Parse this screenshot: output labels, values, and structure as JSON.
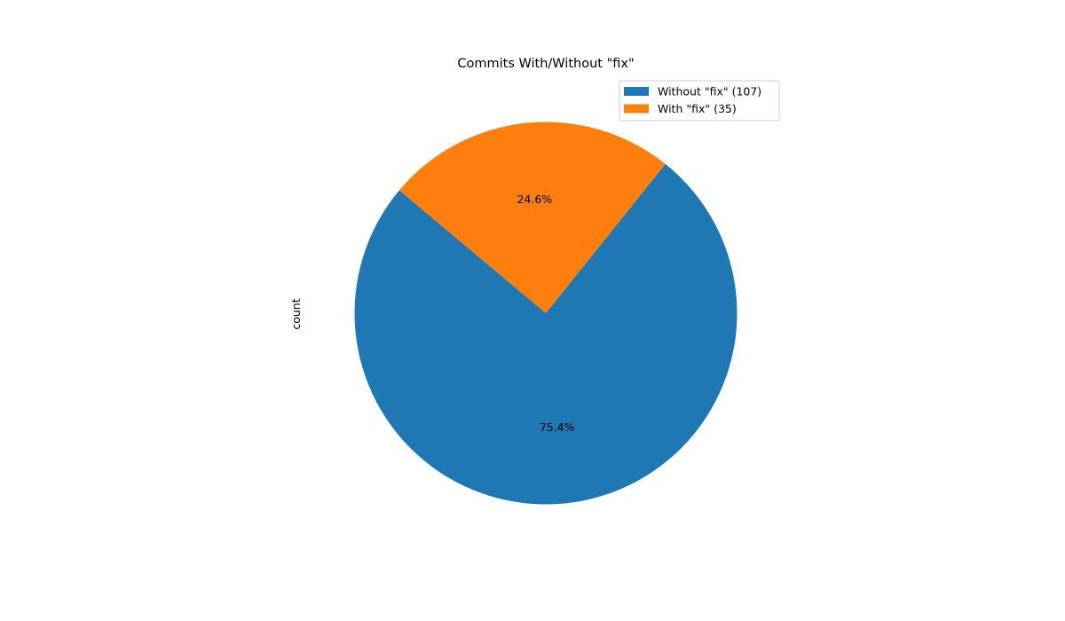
{
  "chart_data": {
    "type": "pie",
    "title": "Commits With/Without \"fix\"",
    "ylabel": "count",
    "legend_position": "top-right",
    "startangle_deg": 140,
    "slices": [
      {
        "label": "Without \"fix\" (107)",
        "value": 107,
        "percent_label": "75.4%",
        "color": "#1f77b4"
      },
      {
        "label": "With \"fix\" (35)",
        "value": 35,
        "percent_label": "24.6%",
        "color": "#ff7f0e"
      }
    ]
  }
}
